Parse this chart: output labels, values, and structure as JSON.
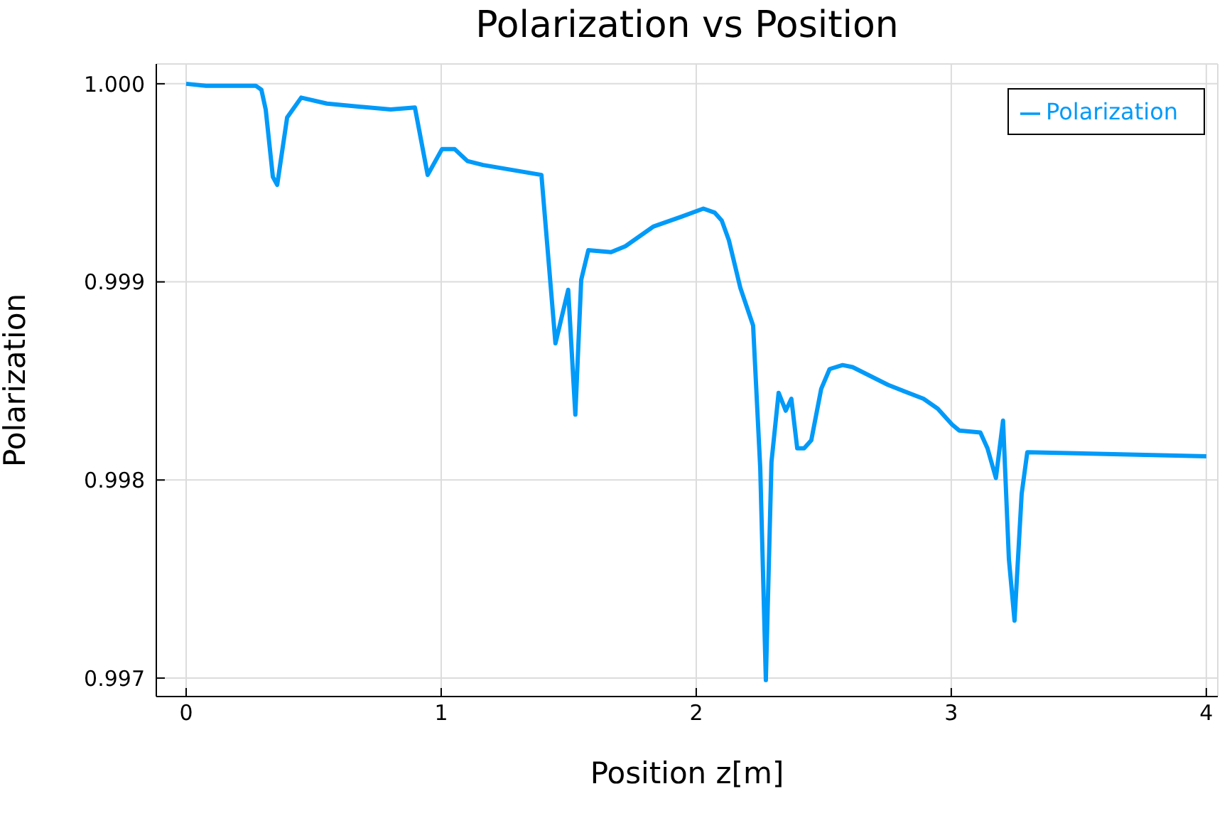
{
  "chart_data": {
    "type": "line",
    "title": "Polarization vs Position",
    "xlabel": "Position z[m]",
    "ylabel": "Polarization",
    "x": [
      0,
      0.078,
      0.117,
      0.273,
      0.295,
      0.312,
      0.34,
      0.357,
      0.396,
      0.451,
      0.552,
      0.802,
      0.897,
      0.947,
      1.003,
      1.053,
      1.103,
      1.164,
      1.393,
      1.448,
      1.498,
      1.526,
      1.549,
      1.577,
      1.666,
      1.722,
      1.833,
      1.944,
      2.028,
      2.072,
      2.1,
      2.128,
      2.173,
      2.223,
      2.251,
      2.273,
      2.295,
      2.323,
      2.351,
      2.373,
      2.396,
      2.423,
      2.451,
      2.49,
      2.523,
      2.574,
      2.613,
      2.752,
      2.891,
      2.947,
      3.003,
      3.031,
      3.114,
      3.142,
      3.175,
      3.203,
      3.226,
      3.248,
      3.276,
      3.298,
      4.0
    ],
    "series": [
      {
        "name": "Polarization",
        "color": "#009af9",
        "values": [
          1.0,
          0.99999,
          0.99999,
          0.99999,
          0.99997,
          0.99987,
          0.99953,
          0.99949,
          0.99983,
          0.99993,
          0.9999,
          0.99987,
          0.99988,
          0.99954,
          0.99967,
          0.99967,
          0.99961,
          0.99959,
          0.99954,
          0.99869,
          0.99896,
          0.99833,
          0.99901,
          0.99916,
          0.99915,
          0.99918,
          0.99928,
          0.99933,
          0.99937,
          0.99935,
          0.99931,
          0.99921,
          0.99897,
          0.99878,
          0.99806,
          0.99699,
          0.99809,
          0.99844,
          0.99835,
          0.99841,
          0.99816,
          0.99816,
          0.9982,
          0.99846,
          0.99856,
          0.99858,
          0.99857,
          0.99848,
          0.99841,
          0.99836,
          0.99828,
          0.99825,
          0.99824,
          0.99816,
          0.99801,
          0.9983,
          0.9976,
          0.99729,
          0.99793,
          0.99814,
          0.99812
        ]
      }
    ],
    "xlim": [
      -0.117,
      4.045
    ],
    "xticks": [
      0,
      1,
      2,
      3,
      4
    ],
    "ylim": [
      0.996907,
      1.0001
    ],
    "yticks": [
      {
        "value": 0.997,
        "label": "0.997"
      },
      {
        "value": 0.998,
        "label": "0.998"
      },
      {
        "value": 0.999,
        "label": "0.999"
      },
      {
        "value": 1.0,
        "label": "1.000"
      }
    ],
    "grid": true,
    "legend": "top right",
    "marker": "none",
    "line_style": "solid"
  }
}
